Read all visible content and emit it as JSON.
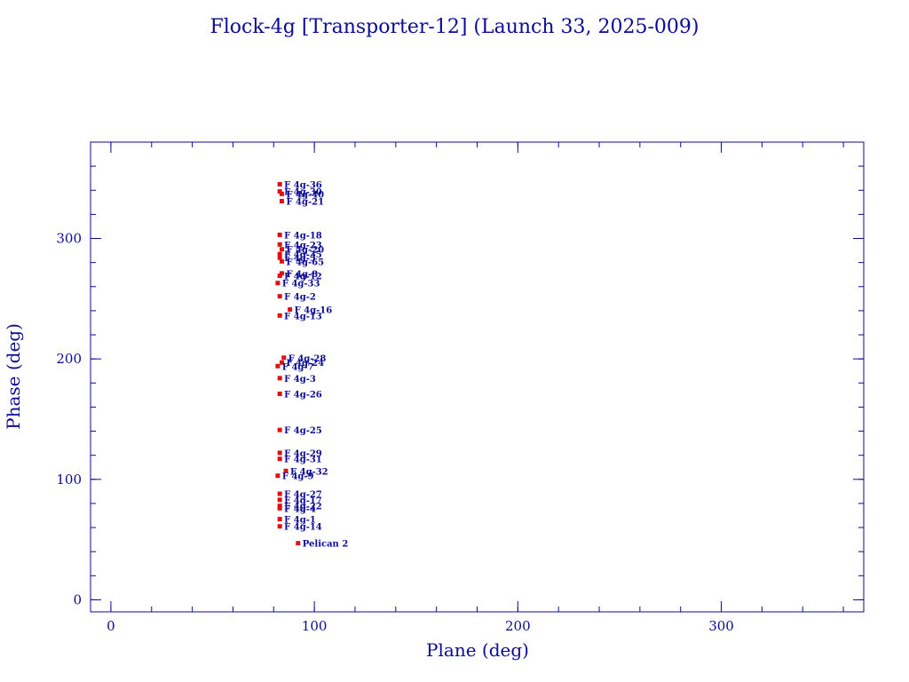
{
  "chart_data": {
    "type": "scatter",
    "title": "Flock-4g [Transporter-12] (Launch 33, 2025-009)",
    "xlabel": "Plane (deg)",
    "ylabel": "Phase (deg)",
    "xlim": [
      -10,
      370
    ],
    "ylim": [
      -10,
      380
    ],
    "x_ticks": [
      0,
      100,
      200,
      300
    ],
    "y_ticks": [
      0,
      100,
      200,
      300
    ],
    "x_minor_step": 20,
    "y_minor_step": 20,
    "grid": false,
    "marker_color": "#e01010",
    "text_color": "#0b0b96",
    "points": [
      {
        "label": "F 4g-36",
        "x": 83,
        "y": 345
      },
      {
        "label": "F 4g-30",
        "x": 83,
        "y": 339
      },
      {
        "label": "F 4g-40",
        "x": 84,
        "y": 337
      },
      {
        "label": "F 4g-21",
        "x": 84,
        "y": 331
      },
      {
        "label": "F 4g-18",
        "x": 83,
        "y": 303
      },
      {
        "label": "F 4g-23",
        "x": 83,
        "y": 295
      },
      {
        "label": "F 4g-20",
        "x": 84,
        "y": 291
      },
      {
        "label": "F 4g-35",
        "x": 83,
        "y": 287
      },
      {
        "label": "F 4g-5",
        "x": 83,
        "y": 284
      },
      {
        "label": "F 4g-65",
        "x": 84,
        "y": 281
      },
      {
        "label": "F 4g-8",
        "x": 84,
        "y": 271
      },
      {
        "label": "F 4g-12",
        "x": 83,
        "y": 269
      },
      {
        "label": "F 4g-33",
        "x": 82,
        "y": 263
      },
      {
        "label": "F 4g-2",
        "x": 83,
        "y": 252
      },
      {
        "label": "F 4g-16",
        "x": 88,
        "y": 241
      },
      {
        "label": "F 4g-13",
        "x": 83,
        "y": 236
      },
      {
        "label": "F 4g-28",
        "x": 85,
        "y": 201
      },
      {
        "label": "F 4g-24",
        "x": 84,
        "y": 197
      },
      {
        "label": "F 4g-7",
        "x": 82,
        "y": 194
      },
      {
        "label": "F 4g-3",
        "x": 83,
        "y": 184
      },
      {
        "label": "F 4g-26",
        "x": 83,
        "y": 171
      },
      {
        "label": "F 4g-25",
        "x": 83,
        "y": 141
      },
      {
        "label": "F 4g-29",
        "x": 83,
        "y": 122
      },
      {
        "label": "F 4g-31",
        "x": 83,
        "y": 117
      },
      {
        "label": "F 4g-32",
        "x": 86,
        "y": 107
      },
      {
        "label": "F 4g-9",
        "x": 82,
        "y": 103
      },
      {
        "label": "F 4g-27",
        "x": 83,
        "y": 88
      },
      {
        "label": "F 4g-17",
        "x": 83,
        "y": 83
      },
      {
        "label": "F 4g-22",
        "x": 83,
        "y": 78
      },
      {
        "label": "F 4g-4",
        "x": 83,
        "y": 76
      },
      {
        "label": "F 4g-1",
        "x": 83,
        "y": 67
      },
      {
        "label": "F 4g-14",
        "x": 83,
        "y": 61
      },
      {
        "label": "Pelican 2",
        "x": 92,
        "y": 47
      }
    ]
  }
}
